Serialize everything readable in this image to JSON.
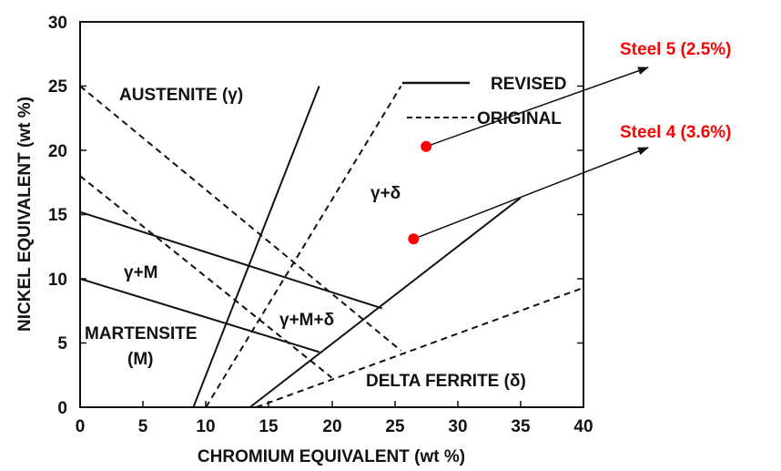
{
  "diagram": {
    "xlabel": "CHROMIUM EQUIVALENT (wt %)",
    "ylabel": "NICKEL EQUIVALENT (wt %)",
    "xlim": [
      0,
      40
    ],
    "ylim": [
      0,
      30
    ],
    "x_ticks": [
      "0",
      "5",
      "10",
      "15",
      "20",
      "25",
      "30",
      "35",
      "40"
    ],
    "y_ticks": [
      "0",
      "5",
      "10",
      "15",
      "20",
      "25",
      "30"
    ],
    "regions": {
      "austenite": "AUSTENITE (γ)",
      "gamma_m": "γ+M",
      "martensite_1": "MARTENSITE",
      "martensite_2": "(M)",
      "gamma_m_delta": "γ+M+δ",
      "gamma_delta": "γ+δ",
      "delta_ferrite": "DELTA FERRITE (δ)"
    },
    "legend": {
      "revised": "REVISED",
      "original": "ORIGINAL"
    },
    "annotations": [
      {
        "label": "Steel 5 (2.5%)",
        "point": [
          27.5,
          20.3
        ],
        "color": "#ff0000"
      },
      {
        "label": "Steel 4 (3.6%)",
        "point": [
          26.5,
          13.1
        ],
        "color": "#ff0000"
      }
    ],
    "boundaries": {
      "revised": [
        [
          [
            9.0,
            0.0
          ],
          [
            19.0,
            25.0
          ]
        ],
        [
          [
            13.5,
            0.0
          ],
          [
            35.0,
            16.3
          ]
        ],
        [
          [
            0.0,
            15.2
          ],
          [
            24.0,
            7.7
          ]
        ],
        [
          [
            0.0,
            10.0
          ],
          [
            19.0,
            4.3
          ]
        ]
      ],
      "original": [
        [
          [
            10.0,
            0.0
          ],
          [
            25.5,
            25.0
          ]
        ],
        [
          [
            14.0,
            0.0
          ],
          [
            40.0,
            9.3
          ]
        ],
        [
          [
            0.0,
            25.0
          ],
          [
            25.5,
            4.4
          ]
        ],
        [
          [
            0.0,
            18.0
          ],
          [
            20.0,
            2.3
          ]
        ]
      ]
    }
  }
}
